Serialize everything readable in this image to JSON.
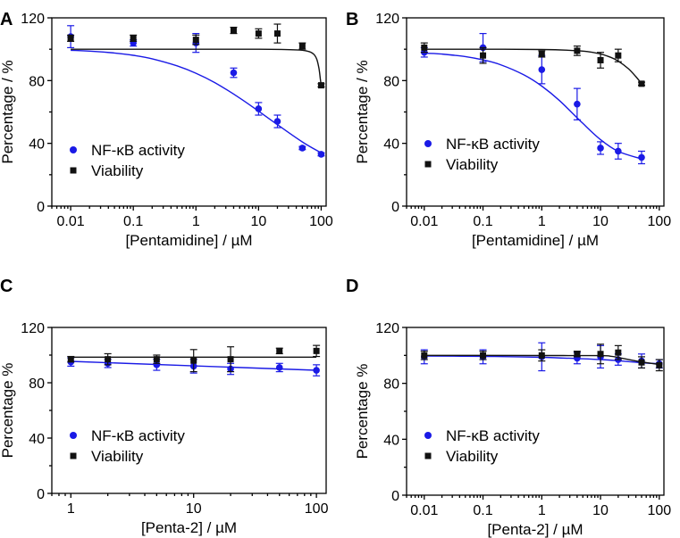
{
  "colors": {
    "nfkb": "#1a1ae6",
    "viability": "#111111"
  },
  "chart_data": [
    {
      "type": "scatter",
      "panel": "A",
      "xscale": "log",
      "xlabel": "[Pentamidine] / µM",
      "ylabel": "Percentage / %",
      "xlim": [
        0.005,
        120
      ],
      "ylim": [
        0,
        120
      ],
      "xticks": [
        0.01,
        0.1,
        1,
        10,
        100
      ],
      "xtick_labels": [
        "0.01",
        "0.1",
        "1",
        "10",
        "100"
      ],
      "yticks": [
        0,
        40,
        80,
        120
      ],
      "ytick_labels": [
        "0",
        "40",
        "80",
        "120"
      ],
      "legend": [
        "NF-κB activity",
        "Viability"
      ],
      "series": [
        {
          "name": "NF-κB activity",
          "marker": "circle",
          "color": "#1a1ae6",
          "points": [
            {
              "x": 0.01,
              "y": 108,
              "err": 7
            },
            {
              "x": 0.1,
              "y": 104,
              "err": 2
            },
            {
              "x": 1,
              "y": 104,
              "err": 6
            },
            {
              "x": 4,
              "y": 85,
              "err": 3
            },
            {
              "x": 10,
              "y": 62,
              "err": 4
            },
            {
              "x": 20,
              "y": 54,
              "err": 4
            },
            {
              "x": 50,
              "y": 37,
              "err": 1
            },
            {
              "x": 100,
              "y": 33,
              "err": 1
            }
          ],
          "fit": {
            "x": [
              0.01,
              0.02,
              0.05,
              0.1,
              0.2,
              0.5,
              1,
              2,
              5,
              10,
              20,
              50,
              100
            ],
            "y": [
              99.3,
              98.8,
              97.6,
              96.1,
              93.9,
              89.4,
              84.7,
              78.7,
              68.9,
              60.5,
              51.9,
              40.9,
              33.9
            ]
          }
        },
        {
          "name": "Viability",
          "marker": "square",
          "color": "#111111",
          "points": [
            {
              "x": 0.01,
              "y": 107,
              "err": 2
            },
            {
              "x": 0.1,
              "y": 107,
              "err": 2
            },
            {
              "x": 1,
              "y": 106,
              "err": 3
            },
            {
              "x": 4,
              "y": 112,
              "err": 2
            },
            {
              "x": 10,
              "y": 110,
              "err": 3
            },
            {
              "x": 20,
              "y": 110,
              "err": 6
            },
            {
              "x": 50,
              "y": 102,
              "err": 2
            },
            {
              "x": 100,
              "y": 77,
              "err": 1
            }
          ],
          "fit": {
            "x": [
              0.01,
              0.1,
              1,
              10,
              40,
              60,
              75,
              85,
              92,
              97,
              100
            ],
            "y": [
              100,
              100,
              100,
              100,
              99.6,
              98.8,
              97,
              93.6,
              88,
              81,
              77
            ]
          }
        }
      ]
    },
    {
      "type": "scatter",
      "panel": "B",
      "xscale": "log",
      "xlabel": "[Pentamidine] / µM",
      "ylabel": "Percentage / %",
      "xlim": [
        0.005,
        120
      ],
      "ylim": [
        0,
        120
      ],
      "xticks": [
        0.01,
        0.1,
        1,
        10,
        100
      ],
      "xtick_labels": [
        "0.01",
        "0.1",
        "1",
        "10",
        "100"
      ],
      "yticks": [
        0,
        40,
        80,
        120
      ],
      "ytick_labels": [
        "0",
        "40",
        "80",
        "120"
      ],
      "legend": [
        "NF-κB activity",
        "Viability"
      ],
      "series": [
        {
          "name": "NF-κB activity",
          "marker": "circle",
          "color": "#1a1ae6",
          "points": [
            {
              "x": 0.01,
              "y": 98,
              "err": 3
            },
            {
              "x": 0.1,
              "y": 101,
              "err": 9
            },
            {
              "x": 1,
              "y": 87,
              "err": 9
            },
            {
              "x": 4,
              "y": 65,
              "err": 10
            },
            {
              "x": 10,
              "y": 37,
              "err": 4
            },
            {
              "x": 20,
              "y": 35,
              "err": 5
            },
            {
              "x": 50,
              "y": 31,
              "err": 4
            }
          ],
          "fit": {
            "x": [
              0.01,
              0.02,
              0.05,
              0.1,
              0.2,
              0.5,
              1,
              2,
              5,
              10,
              20,
              50
            ],
            "y": [
              97.5,
              96.9,
              95.3,
              93.2,
              90.1,
              83.6,
              76.5,
              67.3,
              52.7,
              42.4,
              34.9,
              30.1
            ]
          }
        },
        {
          "name": "Viability",
          "marker": "square",
          "color": "#111111",
          "points": [
            {
              "x": 0.01,
              "y": 101,
              "err": 3
            },
            {
              "x": 0.1,
              "y": 96,
              "err": 5
            },
            {
              "x": 1,
              "y": 97,
              "err": 2
            },
            {
              "x": 4,
              "y": 99,
              "err": 3
            },
            {
              "x": 10,
              "y": 93,
              "err": 5
            },
            {
              "x": 20,
              "y": 96,
              "err": 4
            },
            {
              "x": 50,
              "y": 78,
              "err": 1
            }
          ],
          "fit": {
            "x": [
              0.01,
              0.1,
              1,
              3,
              6,
              10,
              15,
              20,
              30,
              40,
              50
            ],
            "y": [
              100,
              100,
              99.8,
              99.3,
              98.5,
              97,
              94.8,
              92.5,
              87.5,
              82.5,
              78
            ]
          }
        }
      ]
    },
    {
      "type": "scatter",
      "panel": "C",
      "xscale": "log",
      "xlabel": "[Penta-2] / µM",
      "ylabel": "Percentage %",
      "xlim": [
        0.7,
        120
      ],
      "ylim": [
        0,
        120
      ],
      "xticks": [
        1,
        10,
        100
      ],
      "xtick_labels": [
        "1",
        "10",
        "100"
      ],
      "yticks": [
        0,
        40,
        80,
        120
      ],
      "ytick_labels": [
        "0",
        "40",
        "80",
        "120"
      ],
      "legend": [
        "NF-κB activity",
        "Viability"
      ],
      "series": [
        {
          "name": "NF-κB activity",
          "marker": "circle",
          "color": "#1a1ae6",
          "points": [
            {
              "x": 1,
              "y": 95,
              "err": 3
            },
            {
              "x": 2,
              "y": 94,
              "err": 3
            },
            {
              "x": 5,
              "y": 93,
              "err": 4
            },
            {
              "x": 10,
              "y": 92,
              "err": 5
            },
            {
              "x": 20,
              "y": 90,
              "err": 4
            },
            {
              "x": 50,
              "y": 91,
              "err": 3
            },
            {
              "x": 100,
              "y": 89,
              "err": 4
            }
          ],
          "fit": {
            "x": [
              1,
              100
            ],
            "y": [
              95.5,
              89
            ]
          }
        },
        {
          "name": "Viability",
          "marker": "square",
          "color": "#111111",
          "points": [
            {
              "x": 1,
              "y": 97,
              "err": 2
            },
            {
              "x": 2,
              "y": 97,
              "err": 4
            },
            {
              "x": 5,
              "y": 97,
              "err": 3
            },
            {
              "x": 10,
              "y": 96,
              "err": 8
            },
            {
              "x": 20,
              "y": 97,
              "err": 9
            },
            {
              "x": 50,
              "y": 103,
              "err": 2
            },
            {
              "x": 100,
              "y": 103,
              "err": 4
            }
          ],
          "fit": {
            "x": [
              1,
              100
            ],
            "y": [
              98.5,
              98.5
            ]
          }
        }
      ]
    },
    {
      "type": "scatter",
      "panel": "D",
      "xscale": "log",
      "xlabel": "[Penta-2] / µM",
      "ylabel": "Percentage %",
      "xlim": [
        0.005,
        120
      ],
      "ylim": [
        0,
        120
      ],
      "xticks": [
        0.01,
        0.1,
        1,
        10,
        100
      ],
      "xtick_labels": [
        "0.01",
        "0.1",
        "1",
        "10",
        "100"
      ],
      "yticks": [
        0,
        40,
        80,
        120
      ],
      "ytick_labels": [
        "0",
        "40",
        "80",
        "120"
      ],
      "legend": [
        "NF-κB activity",
        "Viability"
      ],
      "series": [
        {
          "name": "NF-κB activity",
          "marker": "circle",
          "color": "#1a1ae6",
          "points": [
            {
              "x": 0.01,
              "y": 99,
              "err": 5
            },
            {
              "x": 0.1,
              "y": 99,
              "err": 5
            },
            {
              "x": 1,
              "y": 99,
              "err": 10
            },
            {
              "x": 4,
              "y": 98,
              "err": 4
            },
            {
              "x": 10,
              "y": 99,
              "err": 8
            },
            {
              "x": 20,
              "y": 97,
              "err": 4
            },
            {
              "x": 50,
              "y": 96,
              "err": 5
            },
            {
              "x": 100,
              "y": 94,
              "err": 3
            }
          ],
          "fit": {
            "x": [
              0.01,
              0.1,
              1,
              10,
              20,
              50,
              100
            ],
            "y": [
              99.5,
              99.3,
              98.6,
              97,
              96.2,
              94.8,
              94
            ]
          }
        },
        {
          "name": "Viability",
          "marker": "square",
          "color": "#111111",
          "points": [
            {
              "x": 0.01,
              "y": 100,
              "err": 3
            },
            {
              "x": 0.1,
              "y": 100,
              "err": 3
            },
            {
              "x": 1,
              "y": 100,
              "err": 4
            },
            {
              "x": 4,
              "y": 101,
              "err": 2
            },
            {
              "x": 10,
              "y": 101,
              "err": 7
            },
            {
              "x": 20,
              "y": 102,
              "err": 5
            },
            {
              "x": 50,
              "y": 95,
              "err": 4
            },
            {
              "x": 100,
              "y": 93,
              "err": 4
            }
          ],
          "fit": {
            "x": [
              0.01,
              0.1,
              1,
              10,
              15,
              20,
              40,
              60,
              100
            ],
            "y": [
              100,
              100,
              99.9,
              99.8,
              99.4,
              98.5,
              96,
              94.8,
              93.5
            ]
          }
        }
      ]
    }
  ]
}
